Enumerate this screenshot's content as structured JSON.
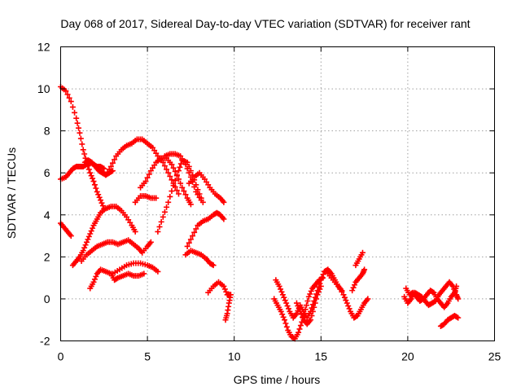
{
  "chart_data": {
    "type": "scatter",
    "title": "Day 068 of 2017, Sidereal Day-to-day VTEC variation (SDTVAR) for receiver rant",
    "xlabel": "GPS time / hours",
    "ylabel": "SDTVAR / TECUs",
    "xlim": [
      0,
      25
    ],
    "ylim": [
      -2,
      12
    ],
    "xticks": [
      0,
      5,
      10,
      15,
      20,
      25
    ],
    "yticks": [
      -2,
      0,
      2,
      4,
      6,
      8,
      10,
      12
    ],
    "grid": true,
    "marker": "+",
    "color": "#ff0000",
    "series": [
      {
        "points": [
          [
            0.0,
            10.1
          ],
          [
            0.3,
            9.9
          ],
          [
            0.6,
            9.4
          ],
          [
            0.9,
            8.6
          ],
          [
            1.1,
            7.9
          ],
          [
            1.3,
            7.1
          ],
          [
            1.5,
            6.5
          ],
          [
            1.7,
            6.0
          ],
          [
            1.9,
            5.6
          ],
          [
            2.1,
            5.1
          ],
          [
            2.3,
            4.7
          ],
          [
            2.5,
            4.3
          ]
        ]
      },
      {
        "points": [
          [
            0.0,
            5.7
          ],
          [
            0.3,
            5.8
          ],
          [
            0.5,
            6.0
          ],
          [
            0.7,
            6.2
          ],
          [
            0.9,
            6.3
          ],
          [
            1.1,
            6.3
          ],
          [
            1.3,
            6.3
          ],
          [
            1.5,
            6.4
          ],
          [
            1.7,
            6.5
          ],
          [
            1.9,
            6.4
          ],
          [
            2.1,
            6.3
          ],
          [
            2.3,
            6.3
          ],
          [
            2.5,
            6.2
          ]
        ]
      },
      {
        "points": [
          [
            1.4,
            6.5
          ],
          [
            1.6,
            6.6
          ],
          [
            1.8,
            6.5
          ],
          [
            2.0,
            6.3
          ],
          [
            2.2,
            6.1
          ],
          [
            2.4,
            6.0
          ],
          [
            2.6,
            5.9
          ],
          [
            2.8,
            6.0
          ],
          [
            3.0,
            6.1
          ]
        ]
      },
      {
        "points": [
          [
            2.6,
            5.9
          ],
          [
            2.9,
            6.3
          ],
          [
            3.2,
            6.8
          ],
          [
            3.5,
            7.1
          ],
          [
            3.8,
            7.3
          ],
          [
            4.1,
            7.4
          ],
          [
            4.4,
            7.6
          ],
          [
            4.7,
            7.6
          ],
          [
            5.0,
            7.4
          ],
          [
            5.3,
            7.2
          ],
          [
            5.6,
            6.8
          ],
          [
            5.9,
            6.5
          ],
          [
            6.2,
            6.0
          ],
          [
            6.5,
            5.5
          ],
          [
            6.8,
            5.0
          ]
        ]
      },
      {
        "points": [
          [
            0.0,
            3.6
          ],
          [
            0.2,
            3.4
          ],
          [
            0.4,
            3.2
          ],
          [
            0.6,
            3.0
          ]
        ]
      },
      {
        "points": [
          [
            0.7,
            1.6
          ],
          [
            0.9,
            1.8
          ],
          [
            1.1,
            2.0
          ],
          [
            1.3,
            2.3
          ],
          [
            1.5,
            2.7
          ],
          [
            1.7,
            3.1
          ],
          [
            1.9,
            3.5
          ],
          [
            2.1,
            3.8
          ],
          [
            2.3,
            4.1
          ],
          [
            2.6,
            4.3
          ],
          [
            2.9,
            4.4
          ],
          [
            3.2,
            4.4
          ],
          [
            3.5,
            4.2
          ],
          [
            3.8,
            3.9
          ],
          [
            4.1,
            3.5
          ],
          [
            4.3,
            3.2
          ]
        ]
      },
      {
        "points": [
          [
            1.2,
            1.8
          ],
          [
            1.5,
            2.1
          ],
          [
            1.8,
            2.3
          ],
          [
            2.1,
            2.5
          ],
          [
            2.4,
            2.6
          ],
          [
            2.7,
            2.7
          ],
          [
            3.0,
            2.7
          ],
          [
            3.3,
            2.6
          ],
          [
            3.6,
            2.7
          ],
          [
            3.9,
            2.8
          ],
          [
            4.2,
            2.6
          ],
          [
            4.5,
            2.4
          ],
          [
            4.7,
            2.2
          ],
          [
            5.0,
            2.5
          ],
          [
            5.2,
            2.7
          ]
        ]
      },
      {
        "points": [
          [
            1.7,
            0.5
          ],
          [
            1.9,
            0.8
          ],
          [
            2.1,
            1.2
          ],
          [
            2.3,
            1.4
          ],
          [
            2.6,
            1.3
          ],
          [
            2.9,
            1.2
          ],
          [
            3.1,
            0.9
          ],
          [
            3.3,
            1.0
          ],
          [
            3.6,
            1.1
          ],
          [
            3.9,
            1.2
          ],
          [
            4.2,
            1.1
          ],
          [
            4.5,
            1.1
          ],
          [
            4.8,
            1.2
          ]
        ]
      },
      {
        "points": [
          [
            3.0,
            1.2
          ],
          [
            3.4,
            1.4
          ],
          [
            3.8,
            1.6
          ],
          [
            4.2,
            1.7
          ],
          [
            4.6,
            1.7
          ],
          [
            5.0,
            1.6
          ],
          [
            5.3,
            1.5
          ],
          [
            5.6,
            1.3
          ]
        ]
      },
      {
        "points": [
          [
            4.3,
            4.6
          ],
          [
            4.6,
            4.9
          ],
          [
            4.9,
            4.9
          ],
          [
            5.2,
            4.8
          ],
          [
            5.5,
            4.8
          ]
        ]
      },
      {
        "points": [
          [
            4.6,
            5.3
          ],
          [
            4.9,
            5.6
          ],
          [
            5.2,
            6.1
          ],
          [
            5.5,
            6.5
          ],
          [
            5.8,
            6.7
          ],
          [
            6.1,
            6.7
          ],
          [
            6.4,
            6.4
          ],
          [
            6.7,
            5.9
          ],
          [
            7.0,
            5.3
          ],
          [
            7.3,
            4.8
          ],
          [
            7.5,
            4.5
          ]
        ]
      },
      {
        "points": [
          [
            5.6,
            3.2
          ],
          [
            5.9,
            3.9
          ],
          [
            6.2,
            4.6
          ],
          [
            6.5,
            5.4
          ],
          [
            6.8,
            6.1
          ],
          [
            7.0,
            6.6
          ],
          [
            7.3,
            6.5
          ],
          [
            7.6,
            5.9
          ],
          [
            7.9,
            5.2
          ],
          [
            8.2,
            4.6
          ]
        ]
      },
      {
        "points": [
          [
            6.0,
            6.8
          ],
          [
            6.3,
            6.9
          ],
          [
            6.6,
            6.9
          ],
          [
            6.9,
            6.8
          ],
          [
            7.2,
            6.4
          ],
          [
            7.5,
            5.8
          ],
          [
            7.8,
            5.1
          ],
          [
            8.1,
            4.7
          ]
        ]
      },
      {
        "points": [
          [
            7.4,
            5.5
          ],
          [
            7.7,
            5.8
          ],
          [
            8.0,
            6.0
          ],
          [
            8.3,
            5.7
          ],
          [
            8.6,
            5.3
          ],
          [
            8.9,
            5.0
          ],
          [
            9.2,
            4.8
          ],
          [
            9.4,
            4.6
          ]
        ]
      },
      {
        "points": [
          [
            7.3,
            2.5
          ],
          [
            7.6,
            3.0
          ],
          [
            7.9,
            3.5
          ],
          [
            8.2,
            3.7
          ],
          [
            8.5,
            3.8
          ],
          [
            8.8,
            4.0
          ],
          [
            9.0,
            4.1
          ],
          [
            9.2,
            4.0
          ],
          [
            9.4,
            3.8
          ]
        ]
      },
      {
        "points": [
          [
            7.2,
            2.1
          ],
          [
            7.5,
            2.3
          ],
          [
            7.8,
            2.2
          ],
          [
            8.1,
            2.1
          ],
          [
            8.4,
            1.9
          ],
          [
            8.6,
            1.7
          ],
          [
            8.8,
            1.6
          ]
        ]
      },
      {
        "points": [
          [
            8.5,
            0.3
          ],
          [
            8.8,
            0.6
          ],
          [
            9.1,
            0.8
          ],
          [
            9.4,
            0.6
          ],
          [
            9.6,
            0.2
          ],
          [
            9.8,
            0.2
          ],
          [
            9.7,
            -0.2
          ],
          [
            9.6,
            -0.7
          ],
          [
            9.5,
            -1.0
          ]
        ]
      },
      {
        "points": [
          [
            12.4,
            0.9
          ],
          [
            12.6,
            0.6
          ],
          [
            12.8,
            0.2
          ],
          [
            13.0,
            -0.2
          ],
          [
            13.2,
            -0.6
          ],
          [
            13.4,
            -0.9
          ],
          [
            13.6,
            -0.7
          ],
          [
            13.8,
            -0.3
          ],
          [
            14.0,
            -0.6
          ],
          [
            14.2,
            -0.9
          ],
          [
            14.4,
            -0.6
          ],
          [
            14.6,
            -0.1
          ],
          [
            14.8,
            0.4
          ],
          [
            15.0,
            0.9
          ],
          [
            15.2,
            1.3
          ],
          [
            15.4,
            1.4
          ],
          [
            15.6,
            1.2
          ],
          [
            15.8,
            0.9
          ],
          [
            16.0,
            0.6
          ],
          [
            16.2,
            0.4
          ]
        ]
      },
      {
        "points": [
          [
            12.3,
            0.0
          ],
          [
            12.5,
            -0.3
          ],
          [
            12.7,
            -0.6
          ],
          [
            12.9,
            -1.0
          ],
          [
            13.1,
            -1.5
          ],
          [
            13.3,
            -1.8
          ],
          [
            13.5,
            -1.9
          ],
          [
            13.7,
            -1.6
          ],
          [
            13.9,
            -1.1
          ],
          [
            14.1,
            -0.5
          ],
          [
            14.3,
            0.1
          ],
          [
            14.5,
            0.5
          ],
          [
            14.7,
            0.7
          ],
          [
            14.9,
            0.9
          ],
          [
            15.1,
            1.0
          ]
        ]
      },
      {
        "points": [
          [
            13.6,
            -0.2
          ],
          [
            13.8,
            -0.6
          ],
          [
            14.0,
            -1.0
          ],
          [
            14.2,
            -1.2
          ],
          [
            14.4,
            -1.0
          ],
          [
            14.6,
            -0.4
          ],
          [
            14.8,
            0.2
          ],
          [
            15.0,
            0.6
          ]
        ]
      },
      {
        "points": [
          [
            15.4,
            1.2
          ],
          [
            15.7,
            0.9
          ],
          [
            16.0,
            0.6
          ],
          [
            16.3,
            0.2
          ],
          [
            16.5,
            -0.2
          ],
          [
            16.7,
            -0.6
          ],
          [
            16.9,
            -0.9
          ],
          [
            17.1,
            -0.8
          ],
          [
            17.3,
            -0.5
          ],
          [
            17.5,
            -0.2
          ],
          [
            17.7,
            0.0
          ]
        ]
      },
      {
        "points": [
          [
            16.8,
            0.4
          ],
          [
            17.0,
            0.8
          ],
          [
            17.2,
            1.0
          ],
          [
            17.4,
            1.2
          ],
          [
            17.5,
            1.4
          ]
        ]
      },
      {
        "points": [
          [
            17.0,
            1.6
          ],
          [
            17.2,
            1.9
          ],
          [
            17.4,
            2.2
          ]
        ]
      },
      {
        "points": [
          [
            19.9,
            0.5
          ],
          [
            20.1,
            0.2
          ],
          [
            20.3,
            0.3
          ],
          [
            20.5,
            0.1
          ],
          [
            20.7,
            -0.1
          ],
          [
            20.9,
            0.0
          ],
          [
            21.1,
            0.2
          ],
          [
            21.3,
            0.4
          ],
          [
            21.5,
            0.3
          ],
          [
            21.7,
            0.0
          ],
          [
            21.9,
            -0.2
          ],
          [
            22.1,
            -0.4
          ],
          [
            22.3,
            -0.2
          ],
          [
            22.5,
            0.1
          ],
          [
            22.7,
            0.3
          ],
          [
            22.8,
            0.6
          ]
        ]
      },
      {
        "points": [
          [
            19.8,
            0.1
          ],
          [
            20.0,
            -0.2
          ],
          [
            20.2,
            0.0
          ],
          [
            20.4,
            0.3
          ],
          [
            20.6,
            0.2
          ],
          [
            20.8,
            0.1
          ],
          [
            21.0,
            -0.1
          ],
          [
            21.2,
            -0.3
          ],
          [
            21.4,
            -0.2
          ],
          [
            21.6,
            -0.1
          ],
          [
            21.8,
            0.2
          ],
          [
            22.0,
            0.4
          ],
          [
            22.2,
            0.6
          ],
          [
            22.4,
            0.8
          ],
          [
            22.6,
            0.6
          ],
          [
            22.8,
            0.2
          ],
          [
            22.9,
            0.0
          ]
        ]
      },
      {
        "points": [
          [
            21.9,
            -1.3
          ],
          [
            22.1,
            -1.2
          ],
          [
            22.3,
            -1.0
          ],
          [
            22.5,
            -0.9
          ],
          [
            22.7,
            -0.8
          ],
          [
            22.9,
            -0.9
          ]
        ]
      }
    ]
  }
}
